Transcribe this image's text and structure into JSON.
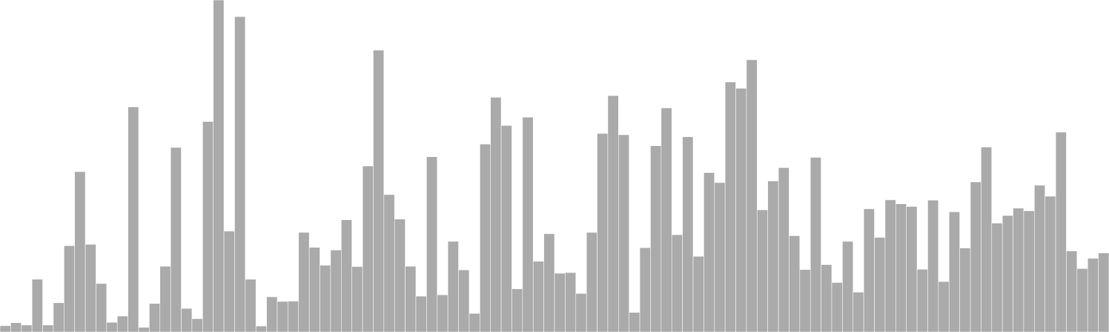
{
  "chart_data": {
    "type": "bar",
    "title": "",
    "xlabel": "",
    "ylabel": "",
    "ylim": [
      0,
      100
    ],
    "grid": false,
    "legend": "none",
    "bar_color": "#aaaaaa",
    "bar_edge_color": "#ffffff",
    "values": [
      1.9,
      2.8,
      2.1,
      15.9,
      2.1,
      8.8,
      26.0,
      48.3,
      26.4,
      14.6,
      2.9,
      4.8,
      67.8,
      1.4,
      8.6,
      19.8,
      55.6,
      7.1,
      4.0,
      63.4,
      100,
      30.4,
      95.0,
      15.9,
      1.8,
      10.6,
      9.2,
      9.3,
      30.0,
      25.5,
      20.1,
      24.7,
      33.8,
      19.7,
      50.0,
      84.9,
      41.4,
      34.0,
      19.8,
      10.8,
      52.8,
      11.2,
      27.3,
      18.7,
      5.6,
      56.6,
      70.7,
      62.2,
      13.0,
      64.7,
      21.3,
      29.6,
      17.7,
      17.9,
      11.6,
      30.0,
      59.8,
      71.2,
      59.4,
      5.9,
      25.4,
      56.1,
      67.5,
      29.3,
      58.8,
      22.8,
      48.0,
      45.0,
      75.3,
      73.4,
      82.0,
      36.8,
      45.5,
      49.5,
      29.0,
      18.8,
      52.6,
      20.3,
      14.9,
      27.3,
      12.0,
      37.1,
      28.5,
      39.8,
      38.6,
      37.8,
      18.9,
      39.7,
      15.2,
      36.2,
      25.3,
      45.2,
      55.7,
      32.8,
      35.1,
      37.3,
      36.5,
      44.2,
      40.9,
      60.2,
      24.4,
      19.1,
      22.2,
      23.8
    ]
  }
}
